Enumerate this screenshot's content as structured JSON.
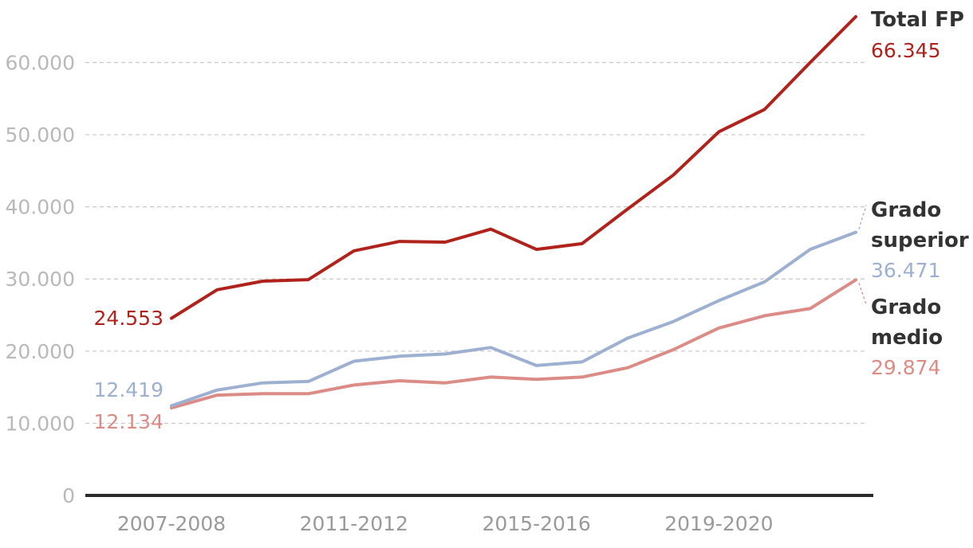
{
  "chart_data": {
    "type": "line",
    "title": "",
    "xlabel": "",
    "ylabel": "",
    "ylim": [
      0,
      66345
    ],
    "y_ticks": [
      0,
      10000,
      20000,
      30000,
      40000,
      50000,
      60000
    ],
    "y_tick_labels": [
      "0",
      "10.000",
      "20.000",
      "30.000",
      "40.000",
      "50.000",
      "60.000"
    ],
    "grid": true,
    "legend": "direct labels at line ends (right)",
    "x": [
      "2007-2008",
      "2008-2009",
      "2009-2010",
      "2010-2011",
      "2011-2012",
      "2012-2013",
      "2013-2014",
      "2014-2015",
      "2015-2016",
      "2016-2017",
      "2017-2018",
      "2018-2019",
      "2019-2020",
      "2020-2021",
      "2021-2022",
      "2022-2023"
    ],
    "x_tick_labels": [
      "2007-2008",
      "2011-2012",
      "2015-2016",
      "2019-2020"
    ],
    "series": [
      {
        "key": "total",
        "name_lines": [
          "Total FP"
        ],
        "color": "#b0231c",
        "start_label": "24.553",
        "end_label": "66.345",
        "values": [
          24553,
          28500,
          29700,
          29900,
          33900,
          35200,
          35100,
          36900,
          34100,
          34900,
          39700,
          44400,
          50400,
          53500,
          60000,
          66345
        ]
      },
      {
        "key": "superior",
        "name_lines": [
          "Grado",
          "superior"
        ],
        "color": "#9eb0d1",
        "start_label": "12.419",
        "end_label": "36.471",
        "values": [
          12419,
          14600,
          15600,
          15800,
          18600,
          19300,
          19600,
          20500,
          18000,
          18500,
          21800,
          24100,
          27000,
          29600,
          34100,
          36471
        ]
      },
      {
        "key": "medio",
        "name_lines": [
          "Grado",
          "medio"
        ],
        "color": "#dc8c86",
        "start_label": "12.134",
        "end_label": "29.874",
        "values": [
          12134,
          13900,
          14100,
          14100,
          15300,
          15900,
          15600,
          16400,
          16100,
          16400,
          17700,
          20200,
          23200,
          24900,
          25900,
          29874
        ]
      }
    ]
  }
}
